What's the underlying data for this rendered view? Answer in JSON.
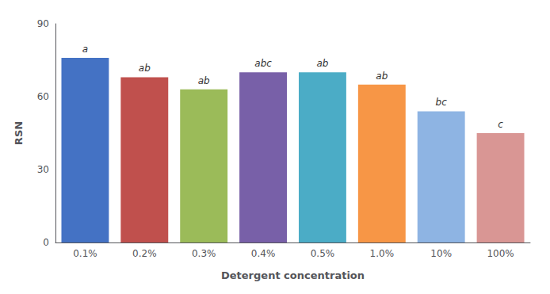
{
  "chart_data": {
    "type": "bar",
    "categories": [
      "0.1%",
      "0.2%",
      "0.3%",
      "0.4%",
      "0.5%",
      "1.0%",
      "10%",
      "100%"
    ],
    "values": [
      76,
      68,
      63,
      70,
      70,
      65,
      54,
      45
    ],
    "colors": [
      "#4472C4",
      "#C0504D",
      "#9BBB59",
      "#7860A8",
      "#4BACC6",
      "#F79646",
      "#8EB4E3",
      "#D99694"
    ],
    "annotations": [
      "a",
      "ab",
      "ab",
      "abc",
      "ab",
      "ab",
      "bc",
      "c"
    ],
    "xlabel": "Detergent concentration",
    "ylabel": "RSN",
    "ylim": [
      0,
      90
    ],
    "yticks": [
      0,
      30,
      60,
      90
    ],
    "grid": false
  }
}
